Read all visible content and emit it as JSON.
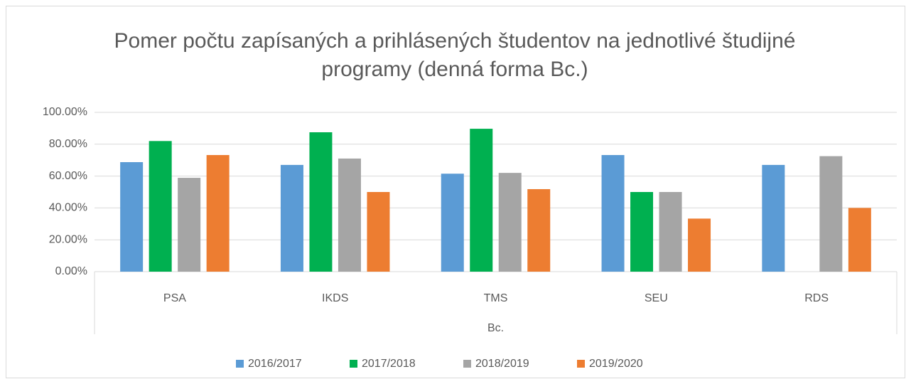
{
  "chart_data": {
    "type": "bar",
    "title": "Pomer počtu zapísaných a prihlásených študentov na jednotlivé študijné programy (denná forma Bc.)",
    "categories": [
      "PSA",
      "IKDS",
      "TMS",
      "SEU",
      "RDS"
    ],
    "group_label": "Bc.",
    "series": [
      {
        "name": "2016/2017",
        "color": "#5b9bd5",
        "values": [
          68.75,
          67,
          61.5,
          73.2,
          67
        ]
      },
      {
        "name": "2017/2018",
        "color": "#00b050",
        "values": [
          82,
          87.5,
          89.7,
          50,
          null
        ]
      },
      {
        "name": "2018/2019",
        "color": "#a5a5a5",
        "values": [
          58.9,
          71,
          62,
          50,
          72.5
        ]
      },
      {
        "name": "2019/2020",
        "color": "#ed7d31",
        "values": [
          73.2,
          50,
          51.8,
          33.3,
          40
        ]
      }
    ],
    "ylim": [
      0,
      100
    ],
    "yticks": [
      {
        "value": 0,
        "label": "0.00%"
      },
      {
        "value": 20,
        "label": "20.00%"
      },
      {
        "value": 40,
        "label": "40.00%"
      },
      {
        "value": 60,
        "label": "60.00%"
      },
      {
        "value": 80,
        "label": "80.00%"
      },
      {
        "value": 100,
        "label": "100.00%"
      }
    ],
    "grid": true,
    "legend": "bottom"
  }
}
